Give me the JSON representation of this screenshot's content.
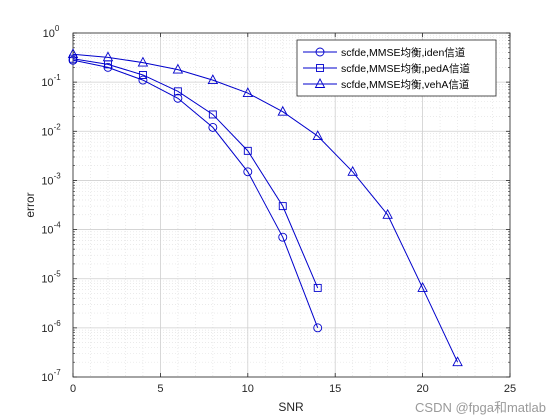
{
  "chart_data": {
    "type": "line",
    "xlabel": "SNR",
    "ylabel": "error",
    "xlim": [
      0,
      25
    ],
    "ylim": [
      1e-07,
      1
    ],
    "yscale": "log",
    "grid": true,
    "minor_grid": true,
    "legend_position": "top-right",
    "x_ticks": [
      0,
      5,
      10,
      15,
      20,
      25
    ],
    "y_tick_exponents": [
      0,
      -1,
      -2,
      -3,
      -4,
      -5,
      -6,
      -7
    ],
    "y_tick_base": "10",
    "series": [
      {
        "name": "scfde,MMSE均衡,iden信道",
        "marker": "circle",
        "color": "#0000cc",
        "x": [
          0,
          2,
          4,
          6,
          8,
          10,
          12,
          14
        ],
        "y": [
          0.28,
          0.2,
          0.11,
          0.047,
          0.012,
          0.0015,
          7e-05,
          1e-06
        ]
      },
      {
        "name": "scfde,MMSE均衡,pedA信道",
        "marker": "square",
        "color": "#0000cc",
        "x": [
          0,
          2,
          4,
          6,
          8,
          10,
          12,
          14
        ],
        "y": [
          0.3,
          0.23,
          0.14,
          0.065,
          0.022,
          0.004,
          0.0003,
          6.5e-06
        ]
      },
      {
        "name": "scfde,MMSE均衡,vehA信道",
        "marker": "triangle",
        "color": "#0000cc",
        "x": [
          0,
          2,
          4,
          6,
          8,
          10,
          12,
          14,
          16,
          18,
          20,
          22
        ],
        "y": [
          0.37,
          0.32,
          0.25,
          0.18,
          0.11,
          0.06,
          0.025,
          0.008,
          0.0015,
          0.0002,
          6.5e-06,
          2e-07
        ]
      }
    ]
  },
  "watermark": "CSDN @fpga和matlab"
}
